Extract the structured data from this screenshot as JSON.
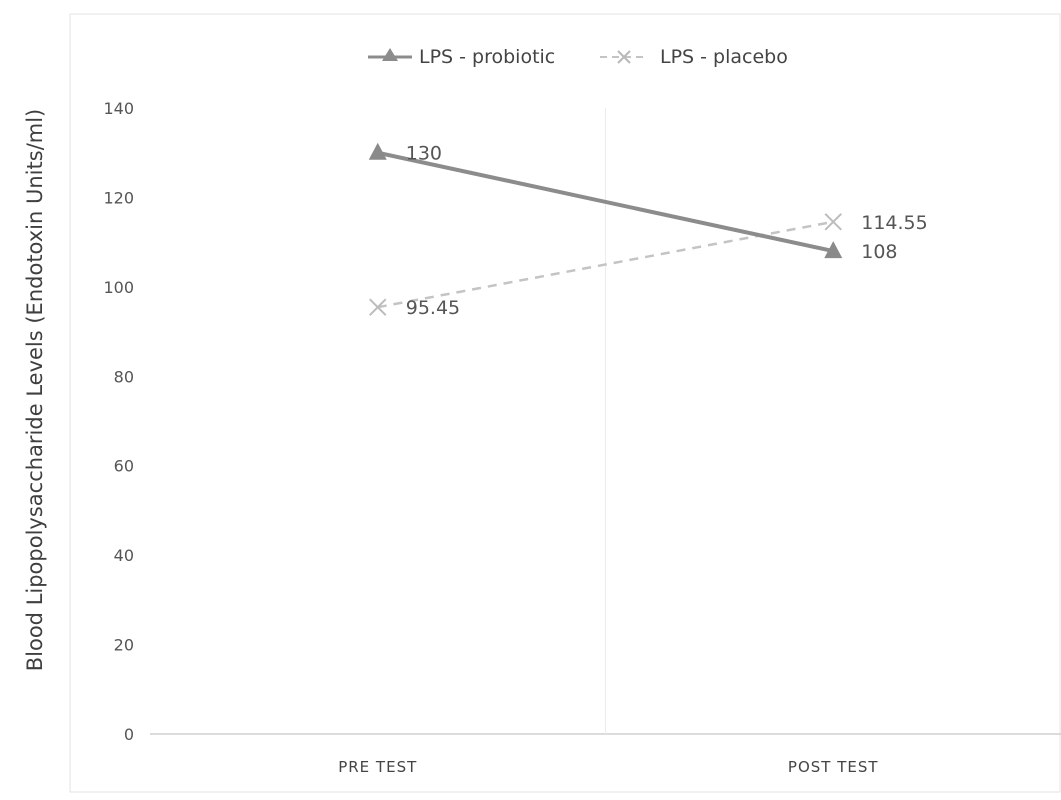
{
  "chart_data": {
    "type": "line",
    "title": "",
    "xlabel": "",
    "ylabel": "Blood Lipopolysaccharide Levels (Endotoxin Units/ml)",
    "categories": [
      "PRE TEST",
      "POST TEST"
    ],
    "ylim": [
      0,
      140
    ],
    "yticks": [
      0,
      20,
      40,
      60,
      80,
      100,
      120,
      140
    ],
    "yticklabels": [
      "0",
      "20",
      "40",
      "60",
      "80",
      "100",
      "120",
      "140"
    ],
    "grid": "vertical category dividers only",
    "legend_position": "top-center",
    "series": [
      {
        "name": "LPS - probiotic",
        "values": [
          130,
          108
        ],
        "data_labels": [
          "130",
          "108"
        ],
        "color": "#8c8c8c",
        "marker": "triangle",
        "line_style": "solid"
      },
      {
        "name": "LPS - placebo",
        "values": [
          95.45,
          114.55
        ],
        "data_labels": [
          "95.45",
          "114.55"
        ],
        "color": "#c4c4c4",
        "marker": "x",
        "line_style": "dashed"
      }
    ]
  }
}
